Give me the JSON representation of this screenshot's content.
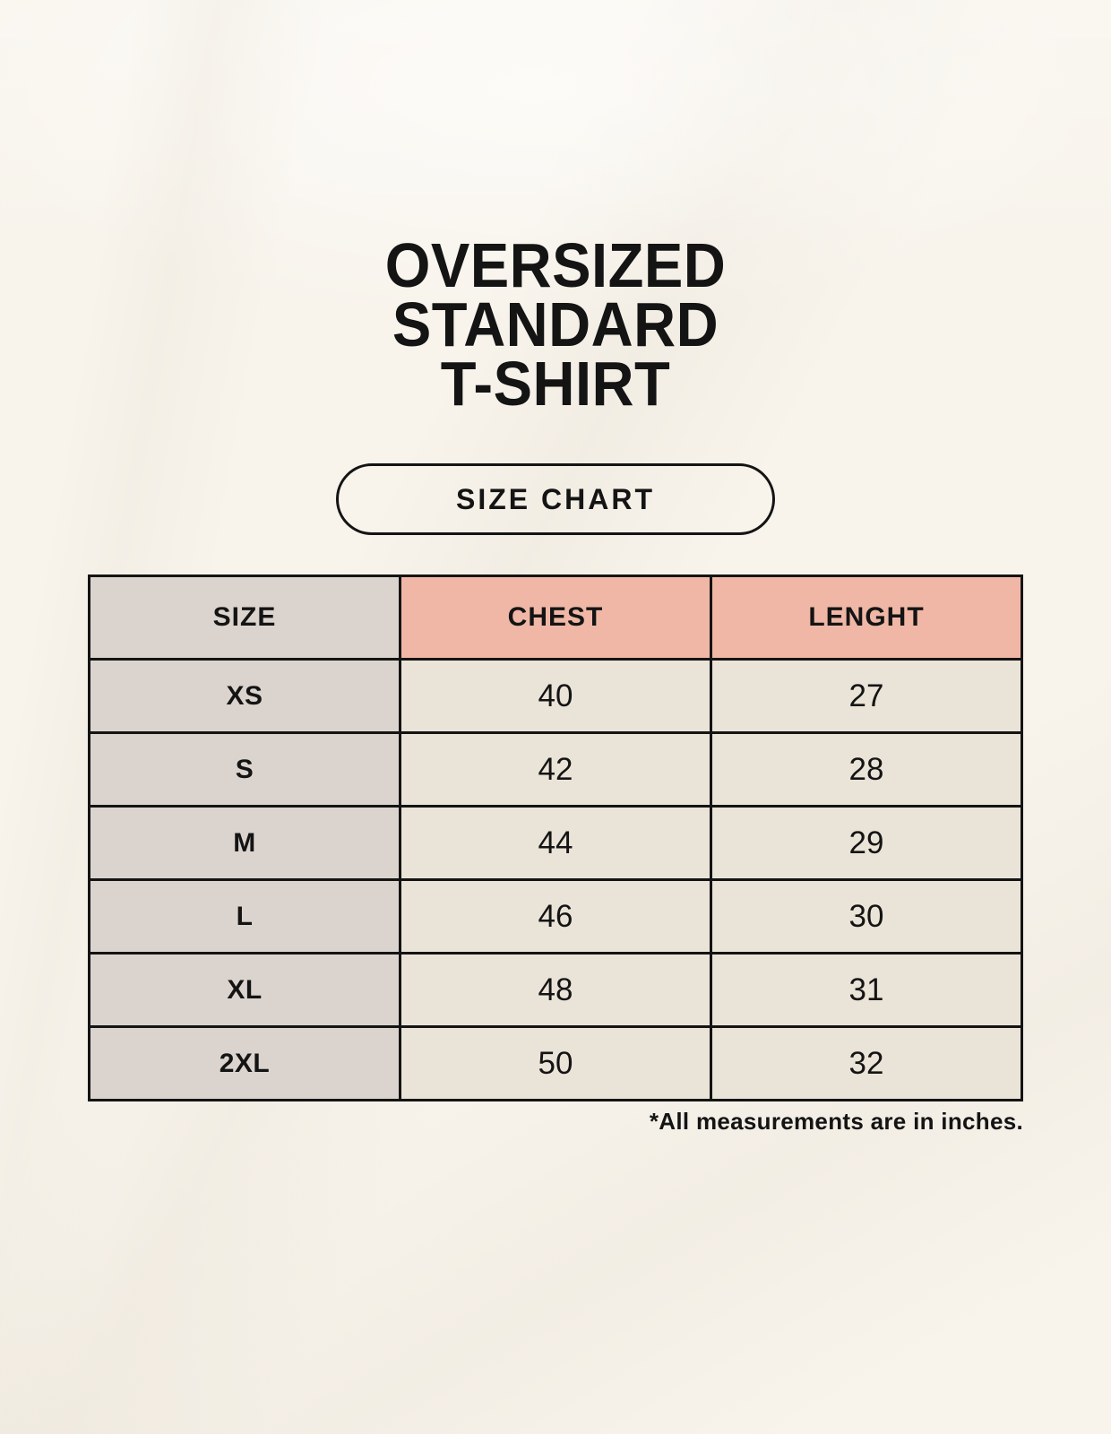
{
  "page": {
    "background_color": "#F8F4EC",
    "text_color": "#141414"
  },
  "title": {
    "line1": "OVERSIZED",
    "line2": "STANDARD",
    "line3": "T-SHIRT"
  },
  "size_chart_button": {
    "label": "SIZE CHART"
  },
  "table": {
    "columns": [
      "SIZE",
      "CHEST",
      "LENGHT"
    ],
    "rows": [
      {
        "size": "XS",
        "chest": "40",
        "length": "27"
      },
      {
        "size": "S",
        "chest": "42",
        "length": "28"
      },
      {
        "size": "M",
        "chest": "44",
        "length": "29"
      },
      {
        "size": "L",
        "chest": "46",
        "length": "30"
      },
      {
        "size": "XL",
        "chest": "48",
        "length": "31"
      },
      {
        "size": "2XL",
        "chest": "50",
        "length": "32"
      }
    ],
    "colors": {
      "size_column_bg": "#DBD4CE",
      "measurement_header_bg": "#F0B7A6",
      "data_cell_bg": "#EAE3D7",
      "border": "#141414"
    }
  },
  "footnote": "*All measurements are in inches."
}
